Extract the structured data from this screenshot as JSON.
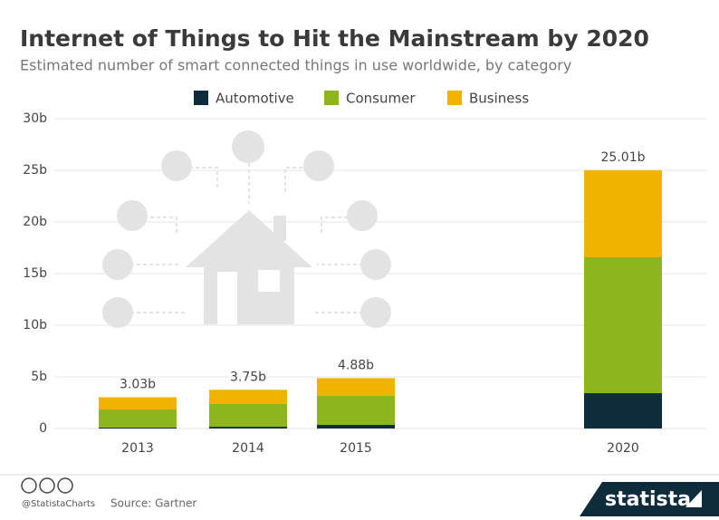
{
  "chart_data": {
    "type": "stacked_bar",
    "title": "Internet of Things to Hit the Mainstream by 2020",
    "subtitle": "Estimated number of smart connected things in use worldwide, by category",
    "categories": [
      "2013",
      "2014",
      "2015",
      "2020"
    ],
    "series": [
      {
        "name": "Automotive",
        "color": "#0f2c3d",
        "values": [
          0.1,
          0.17,
          0.35,
          3.42
        ]
      },
      {
        "name": "Consumer",
        "color": "#8cb51e",
        "values": [
          1.74,
          2.2,
          2.81,
          13.16
        ]
      },
      {
        "name": "Business",
        "color": "#f0b400",
        "values": [
          1.19,
          1.38,
          1.72,
          8.43
        ]
      }
    ],
    "totals": [
      3.03,
      3.75,
      4.88,
      25.01
    ],
    "total_labels": [
      "3.03b",
      "3.75b",
      "4.88b",
      "25.01b"
    ],
    "ylim": [
      0,
      30
    ],
    "yticks": [
      0,
      {
        "value": 5,
        "label": "5b"
      },
      {
        "value": 10,
        "label": "10b"
      },
      {
        "value": 15,
        "label": "15b"
      },
      {
        "value": 20,
        "label": "20b"
      },
      {
        "value": 25,
        "label": "25b"
      },
      {
        "value": 30,
        "label": "30b"
      }
    ],
    "grid": true,
    "credit": "@StatistaCharts",
    "source": "Source: Gartner",
    "brand": "statista"
  }
}
